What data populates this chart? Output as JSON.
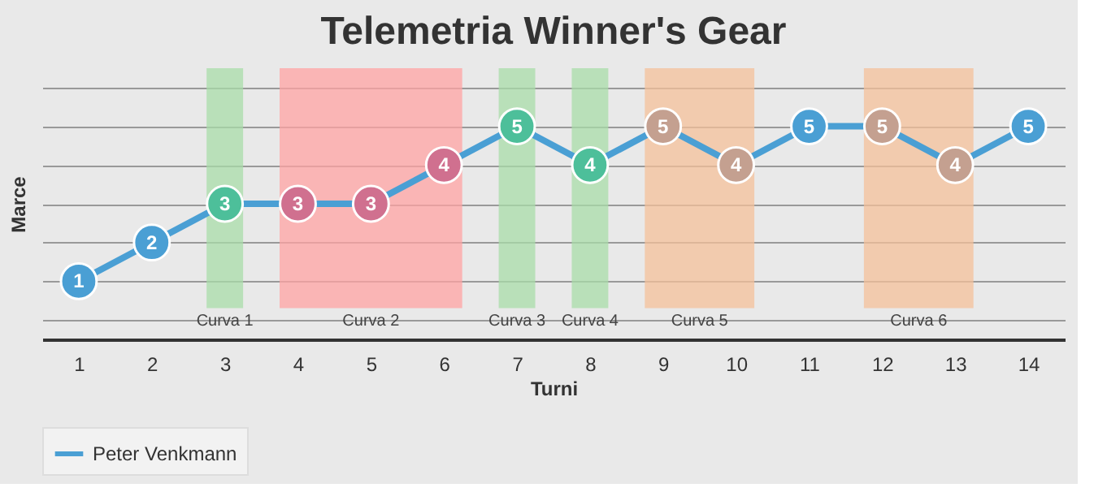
{
  "chart_data": {
    "type": "line",
    "title": "Telemetria Winner's Gear",
    "xlabel": "Turni",
    "ylabel": "Marce",
    "x": [
      1,
      2,
      3,
      4,
      5,
      6,
      7,
      8,
      9,
      10,
      11,
      12,
      13,
      14
    ],
    "series": [
      {
        "name": "Peter Venkmann",
        "color": "#4a9fd4",
        "values": [
          1,
          2,
          3,
          3,
          3,
          4,
          5,
          4,
          5,
          4,
          5,
          5,
          4,
          5
        ],
        "colors": [
          "#4a9fd4",
          "#4a9fd4",
          "#4dbf9a",
          "#d0708f",
          "#d0708f",
          "#d0708f",
          "#4dbf9a",
          "#4dbf9a",
          "#c4a090",
          "#c4a090",
          "#4a9fd4",
          "#c4a090",
          "#c4a090",
          "#4a9fd4"
        ]
      }
    ],
    "xlim": [
      0.5,
      14.5
    ],
    "xticks": [
      1,
      2,
      3,
      4,
      5,
      6,
      7,
      8,
      9,
      10,
      11,
      12,
      13,
      14
    ],
    "tick_labels": "x",
    "grid": "y",
    "legend": "bottom",
    "marker": "circle",
    "line_style": "solid",
    "data_labels": true,
    "bands": [
      {
        "axis": "x",
        "from": 2.75,
        "to": 3.25,
        "label": "Curva 1",
        "color": "#a8dca8"
      },
      {
        "axis": "x",
        "from": 3.75,
        "to": 6.25,
        "label": "Curva 2",
        "color": "#ffa3a3"
      },
      {
        "axis": "x",
        "from": 6.75,
        "to": 7.25,
        "label": "Curva 3",
        "color": "#a8dca8"
      },
      {
        "axis": "x",
        "from": 7.75,
        "to": 8.25,
        "label": "Curva 4",
        "color": "#a8dca8"
      },
      {
        "axis": "x",
        "from": 8.75,
        "to": 10.25,
        "label": "Curva 5",
        "color": "#f4c09a"
      },
      {
        "axis": "x",
        "from": 11.75,
        "to": 13.25,
        "label": "Curva 6",
        "color": "#f4c09a"
      }
    ]
  }
}
